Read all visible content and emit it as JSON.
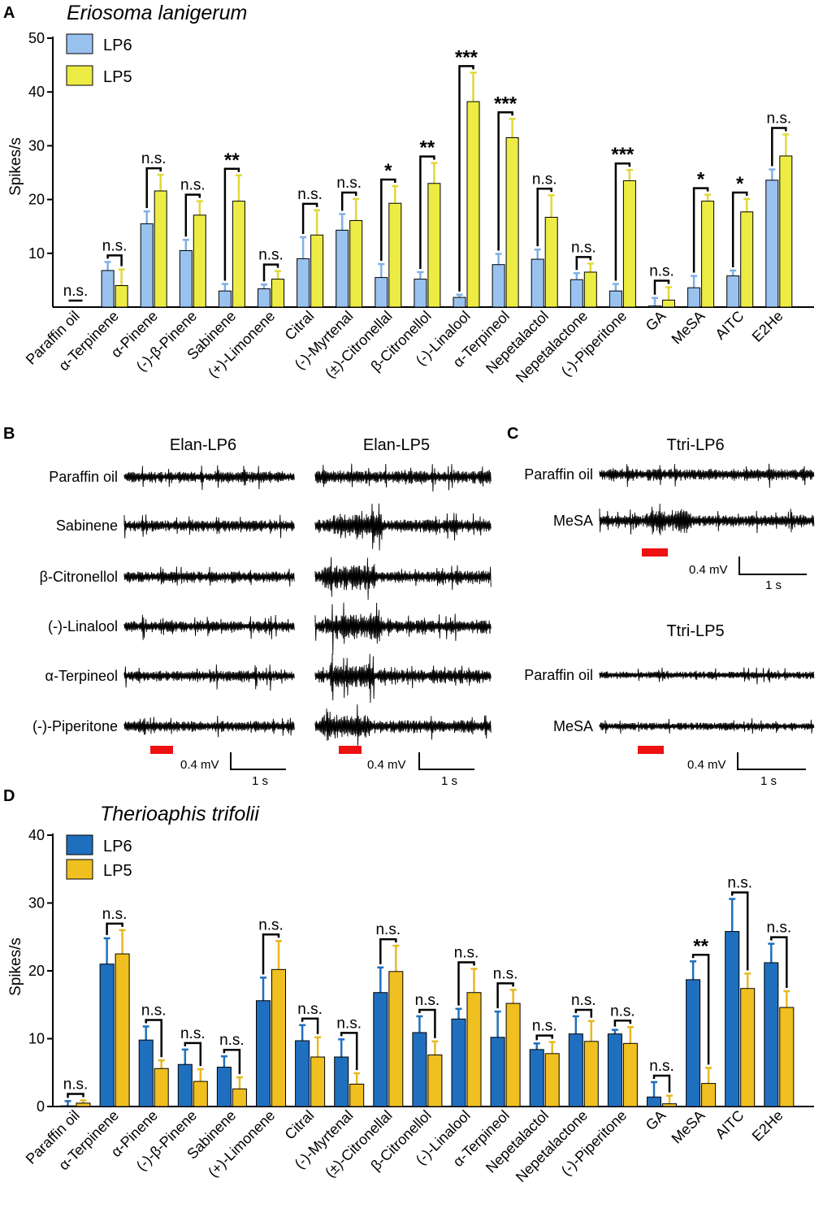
{
  "panel_letters": {
    "a": "A",
    "b": "B",
    "c": "C",
    "d": "D"
  },
  "colors": {
    "A_lp6": "#99c2ef",
    "A_lp5": "#ecec45",
    "A_lp6_err": "#7fb0e6",
    "A_lp5_err": "#e2d837",
    "D_lp6": "#1f6fbf",
    "D_lp5": "#f0c020",
    "D_lp6_err": "#1f6fbf",
    "D_lp5_err": "#e8b820",
    "stim": "#ee1111"
  },
  "chart_data": [
    {
      "id": "A",
      "type": "bar",
      "title": "Eriosoma lanigerum",
      "ylabel": "Spikes/s",
      "xlabel": "",
      "ylim": [
        0,
        50
      ],
      "yticks": [
        "10",
        "20",
        "30",
        "40",
        "50"
      ],
      "legend_position": "top-left",
      "categories": [
        "Paraffin oil",
        "α-Terpinene",
        "α-Pinene",
        "(-)-β-Pinene",
        "Sabinene",
        "(+)-Limonene",
        "Citral",
        "(-)-Myrtenal",
        "(±)-Citronellal",
        "β-Citronellol",
        "(-)-Linalool",
        "α-Terpineol",
        "Nepetalactol",
        "Nepetalactone",
        "(-)-Piperitone",
        "GA",
        "MeSA",
        "AITC",
        "E2He"
      ],
      "series": [
        {
          "name": "LP6",
          "values": [
            0,
            6.8,
            15.5,
            10.5,
            3.0,
            3.4,
            9.0,
            14.3,
            5.5,
            5.2,
            1.8,
            7.9,
            8.9,
            5.1,
            3.0,
            0.2,
            3.6,
            5.8,
            23.6
          ],
          "errors": [
            0,
            1.6,
            2.3,
            2.0,
            1.3,
            0.8,
            4.0,
            3.0,
            2.5,
            1.3,
            0.5,
            2.0,
            1.8,
            1.2,
            1.3,
            1.5,
            2.2,
            1.0,
            2.0
          ]
        },
        {
          "name": "LP5",
          "values": [
            0,
            4.0,
            21.6,
            17.1,
            19.7,
            5.2,
            13.4,
            16.1,
            19.3,
            23.0,
            38.2,
            31.5,
            16.7,
            6.5,
            23.5,
            1.3,
            19.7,
            17.7,
            28.1
          ],
          "errors": [
            0,
            3.0,
            3.0,
            2.6,
            4.8,
            1.5,
            4.6,
            4.0,
            3.2,
            3.8,
            5.4,
            3.5,
            4.1,
            1.6,
            2.0,
            2.4,
            1.2,
            2.4,
            4.0
          ]
        }
      ],
      "significance": [
        "n.s.",
        "n.s.",
        "n.s.",
        "n.s.",
        "**",
        "n.s.",
        "n.s.",
        "n.s.",
        "*",
        "**",
        "***",
        "***",
        "n.s.",
        "n.s.",
        "***",
        "n.s.",
        "*",
        "*",
        "n.s."
      ]
    },
    {
      "id": "D",
      "type": "bar",
      "title": "Therioaphis trifolii",
      "ylabel": "Spikes/s",
      "xlabel": "",
      "ylim": [
        0,
        40
      ],
      "yticks": [
        "0",
        "10",
        "20",
        "30",
        "40"
      ],
      "legend_position": "top-left",
      "categories": [
        "Paraffin oil",
        "α-Terpinene",
        "α-Pinene",
        "(-)-β-Pinene",
        "Sabinene",
        "(+)-Limonene",
        "Citral",
        "(-)-Myrtenal",
        "(±)-Citronellal",
        "β-Citronellol",
        "(-)-Linalool",
        "α-Terpineol",
        "Nepetalactol",
        "Nepetalactone",
        "(-)-Piperitone",
        "GA",
        "MeSA",
        "AITC",
        "E2He"
      ],
      "series": [
        {
          "name": "LP6",
          "values": [
            0.1,
            21.0,
            9.8,
            6.2,
            5.8,
            15.6,
            9.7,
            7.3,
            16.8,
            10.9,
            12.9,
            10.2,
            8.4,
            10.7,
            10.7,
            1.4,
            18.7,
            25.8,
            21.2
          ],
          "errors": [
            0.7,
            3.8,
            2.0,
            2.2,
            1.6,
            3.4,
            2.3,
            2.6,
            3.7,
            2.4,
            1.5,
            3.8,
            0.9,
            2.6,
            0.6,
            2.2,
            2.7,
            4.8,
            2.8
          ]
        },
        {
          "name": "LP5",
          "values": [
            0.5,
            22.5,
            5.6,
            3.7,
            2.6,
            20.2,
            7.3,
            3.3,
            19.9,
            7.6,
            16.8,
            15.2,
            7.8,
            9.6,
            9.3,
            0.4,
            3.4,
            17.4,
            14.6
          ],
          "errors": [
            0.4,
            3.5,
            1.2,
            1.8,
            1.7,
            4.2,
            2.9,
            1.6,
            3.8,
            2.0,
            3.5,
            2.0,
            1.7,
            3.0,
            2.4,
            1.2,
            2.3,
            2.2,
            2.4
          ]
        }
      ],
      "significance": [
        "n.s.",
        "n.s.",
        "n.s.",
        "n.s.",
        "n.s.",
        "n.s.",
        "n.s.",
        "n.s.",
        "n.s.",
        "n.s.",
        "n.s.",
        "n.s.",
        "n.s.",
        "n.s.",
        "n.s.",
        "n.s.",
        "**",
        "n.s.",
        "n.s."
      ]
    }
  ],
  "panel_B": {
    "columns": [
      "Elan-LP6",
      "Elan-LP5"
    ],
    "rows": [
      "Paraffin oil",
      "Sabinene",
      "β-Citronellol",
      "(-)-Linalool",
      "α-Terpineol",
      "(-)-Piperitone"
    ],
    "scale_voltage": "0.4 mV",
    "scale_time": "1 s"
  },
  "panel_C": {
    "blocks": [
      {
        "title": "Ttri-LP6",
        "rows": [
          "Paraffin oil",
          "MeSA"
        ]
      },
      {
        "title": "Ttri-LP5",
        "rows": [
          "Paraffin oil",
          "MeSA"
        ]
      }
    ],
    "scale_voltage": "0.4 mV",
    "scale_time": "1 s"
  }
}
